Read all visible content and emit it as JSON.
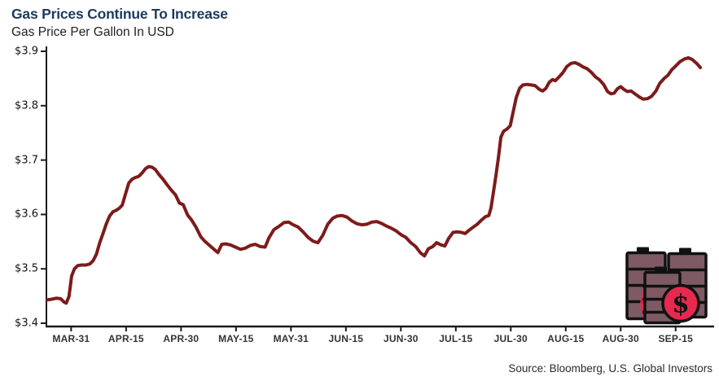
{
  "source": "Source: Bloomberg, U.S. Global Investors",
  "colors": {
    "line": "#7d1b1b",
    "title": "#1d3a5e",
    "axis": "#1a1a1a",
    "icon_barrel": "#7d5a64",
    "icon_accent": "#e6294e",
    "icon_outline": "#111111"
  },
  "chart_data": {
    "type": "line",
    "title": "Gas Prices Continue To Increase",
    "subtitle": "Gas Price Per Gallon In USD",
    "xlabel": "",
    "ylabel": "Gas Price Per Gallon In USD",
    "grid": false,
    "legend": "none",
    "y_domain": [
      3.4,
      3.9
    ],
    "x_domain": [
      -0.45,
      11.7
    ],
    "y_ticks": [
      {
        "label": "$3.4",
        "value": 3.4
      },
      {
        "label": "$3.5",
        "value": 3.5
      },
      {
        "label": "$3.6",
        "value": 3.6
      },
      {
        "label": "$3.7",
        "value": 3.7
      },
      {
        "label": "$3.8",
        "value": 3.8
      },
      {
        "label": "$3.9",
        "value": 3.9
      }
    ],
    "x_ticks": [
      {
        "label": "MAR-31",
        "t": 0
      },
      {
        "label": "APR-15",
        "t": 1
      },
      {
        "label": "APR-30",
        "t": 2
      },
      {
        "label": "MAY-15",
        "t": 3
      },
      {
        "label": "MAY-31",
        "t": 4
      },
      {
        "label": "JUN-15",
        "t": 5
      },
      {
        "label": "JUN-30",
        "t": 6
      },
      {
        "label": "JUL-15",
        "t": 7
      },
      {
        "label": "JUL-30",
        "t": 8
      },
      {
        "label": "AUG-15",
        "t": 9
      },
      {
        "label": "AUG-30",
        "t": 10
      },
      {
        "label": "SEP-15",
        "t": 11
      }
    ],
    "series": [
      {
        "name": "Gas price per gallon (USD)",
        "points": [
          [
            -0.44,
            3.443
          ],
          [
            -0.36,
            3.444
          ],
          [
            -0.27,
            3.446
          ],
          [
            -0.19,
            3.445
          ],
          [
            -0.13,
            3.439
          ],
          [
            -0.09,
            3.437
          ],
          [
            -0.04,
            3.449
          ],
          [
            0.01,
            3.487
          ],
          [
            0.06,
            3.5
          ],
          [
            0.12,
            3.506
          ],
          [
            0.19,
            3.507
          ],
          [
            0.27,
            3.507
          ],
          [
            0.34,
            3.509
          ],
          [
            0.4,
            3.515
          ],
          [
            0.46,
            3.527
          ],
          [
            0.52,
            3.548
          ],
          [
            0.58,
            3.565
          ],
          [
            0.64,
            3.583
          ],
          [
            0.7,
            3.597
          ],
          [
            0.76,
            3.605
          ],
          [
            0.81,
            3.607
          ],
          [
            0.87,
            3.611
          ],
          [
            0.93,
            3.617
          ],
          [
            0.99,
            3.638
          ],
          [
            1.05,
            3.658
          ],
          [
            1.11,
            3.665
          ],
          [
            1.17,
            3.668
          ],
          [
            1.23,
            3.67
          ],
          [
            1.29,
            3.676
          ],
          [
            1.35,
            3.684
          ],
          [
            1.41,
            3.688
          ],
          [
            1.47,
            3.687
          ],
          [
            1.53,
            3.683
          ],
          [
            1.6,
            3.673
          ],
          [
            1.67,
            3.665
          ],
          [
            1.75,
            3.654
          ],
          [
            1.82,
            3.645
          ],
          [
            1.9,
            3.636
          ],
          [
            1.97,
            3.621
          ],
          [
            2.04,
            3.618
          ],
          [
            2.12,
            3.599
          ],
          [
            2.19,
            3.59
          ],
          [
            2.27,
            3.577
          ],
          [
            2.36,
            3.559
          ],
          [
            2.44,
            3.55
          ],
          [
            2.53,
            3.542
          ],
          [
            2.61,
            3.535
          ],
          [
            2.67,
            3.53
          ],
          [
            2.74,
            3.545
          ],
          [
            2.81,
            3.546
          ],
          [
            2.9,
            3.544
          ],
          [
            2.99,
            3.54
          ],
          [
            3.08,
            3.536
          ],
          [
            3.17,
            3.538
          ],
          [
            3.26,
            3.543
          ],
          [
            3.35,
            3.545
          ],
          [
            3.44,
            3.541
          ],
          [
            3.53,
            3.54
          ],
          [
            3.6,
            3.557
          ],
          [
            3.69,
            3.572
          ],
          [
            3.78,
            3.578
          ],
          [
            3.87,
            3.585
          ],
          [
            3.96,
            3.586
          ],
          [
            4.04,
            3.581
          ],
          [
            4.13,
            3.577
          ],
          [
            4.22,
            3.568
          ],
          [
            4.31,
            3.558
          ],
          [
            4.4,
            3.551
          ],
          [
            4.49,
            3.548
          ],
          [
            4.58,
            3.562
          ],
          [
            4.67,
            3.582
          ],
          [
            4.76,
            3.593
          ],
          [
            4.84,
            3.597
          ],
          [
            4.93,
            3.598
          ],
          [
            5.02,
            3.595
          ],
          [
            5.11,
            3.588
          ],
          [
            5.2,
            3.583
          ],
          [
            5.29,
            3.581
          ],
          [
            5.38,
            3.582
          ],
          [
            5.47,
            3.586
          ],
          [
            5.56,
            3.587
          ],
          [
            5.64,
            3.584
          ],
          [
            5.73,
            3.579
          ],
          [
            5.82,
            3.575
          ],
          [
            5.91,
            3.57
          ],
          [
            6.0,
            3.563
          ],
          [
            6.09,
            3.558
          ],
          [
            6.18,
            3.548
          ],
          [
            6.27,
            3.541
          ],
          [
            6.36,
            3.529
          ],
          [
            6.43,
            3.524
          ],
          [
            6.5,
            3.537
          ],
          [
            6.58,
            3.541
          ],
          [
            6.65,
            3.548
          ],
          [
            6.73,
            3.544
          ],
          [
            6.8,
            3.542
          ],
          [
            6.87,
            3.556
          ],
          [
            6.95,
            3.567
          ],
          [
            7.02,
            3.568
          ],
          [
            7.1,
            3.567
          ],
          [
            7.17,
            3.565
          ],
          [
            7.24,
            3.571
          ],
          [
            7.32,
            3.577
          ],
          [
            7.39,
            3.582
          ],
          [
            7.47,
            3.59
          ],
          [
            7.54,
            3.596
          ],
          [
            7.6,
            3.598
          ],
          [
            7.64,
            3.612
          ],
          [
            7.69,
            3.645
          ],
          [
            7.73,
            3.672
          ],
          [
            7.78,
            3.708
          ],
          [
            7.82,
            3.742
          ],
          [
            7.87,
            3.753
          ],
          [
            7.93,
            3.757
          ],
          [
            7.99,
            3.763
          ],
          [
            8.04,
            3.787
          ],
          [
            8.1,
            3.815
          ],
          [
            8.16,
            3.832
          ],
          [
            8.22,
            3.838
          ],
          [
            8.3,
            3.839
          ],
          [
            8.37,
            3.838
          ],
          [
            8.44,
            3.837
          ],
          [
            8.52,
            3.83
          ],
          [
            8.58,
            3.827
          ],
          [
            8.64,
            3.832
          ],
          [
            8.7,
            3.843
          ],
          [
            8.76,
            3.848
          ],
          [
            8.81,
            3.846
          ],
          [
            8.87,
            3.852
          ],
          [
            8.95,
            3.861
          ],
          [
            9.02,
            3.872
          ],
          [
            9.1,
            3.878
          ],
          [
            9.17,
            3.879
          ],
          [
            9.24,
            3.876
          ],
          [
            9.32,
            3.871
          ],
          [
            9.39,
            3.868
          ],
          [
            9.47,
            3.861
          ],
          [
            9.54,
            3.853
          ],
          [
            9.61,
            3.848
          ],
          [
            9.69,
            3.839
          ],
          [
            9.76,
            3.826
          ],
          [
            9.82,
            3.822
          ],
          [
            9.88,
            3.823
          ],
          [
            9.94,
            3.831
          ],
          [
            10.0,
            3.835
          ],
          [
            10.06,
            3.83
          ],
          [
            10.12,
            3.826
          ],
          [
            10.19,
            3.827
          ],
          [
            10.27,
            3.821
          ],
          [
            10.34,
            3.816
          ],
          [
            10.41,
            3.812
          ],
          [
            10.49,
            3.813
          ],
          [
            10.56,
            3.817
          ],
          [
            10.64,
            3.827
          ],
          [
            10.71,
            3.841
          ],
          [
            10.79,
            3.85
          ],
          [
            10.86,
            3.856
          ],
          [
            10.93,
            3.866
          ],
          [
            11.01,
            3.874
          ],
          [
            11.08,
            3.881
          ],
          [
            11.16,
            3.886
          ],
          [
            11.23,
            3.888
          ],
          [
            11.3,
            3.885
          ],
          [
            11.38,
            3.878
          ],
          [
            11.45,
            3.87
          ]
        ]
      }
    ]
  }
}
